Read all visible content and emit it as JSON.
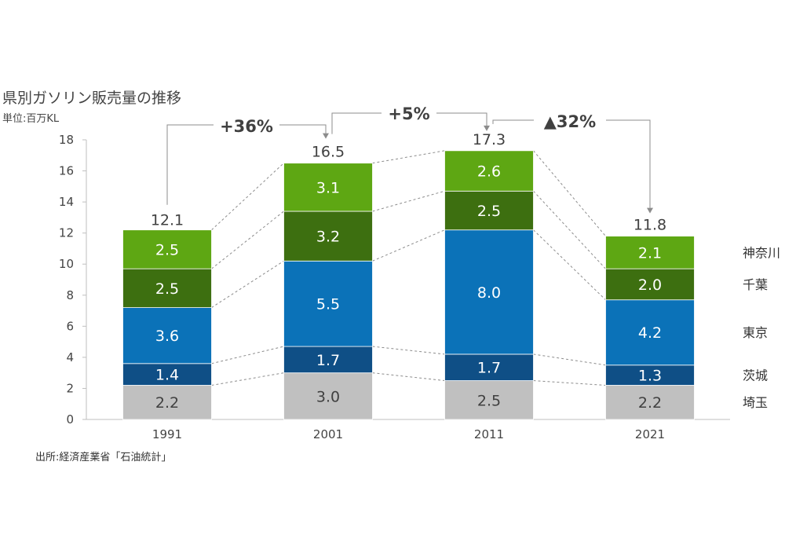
{
  "title": "県別ガソリン販売量の推移",
  "unit": "単位:百万KL",
  "source": "出所:経済産業省「石油統計」",
  "chart_data": {
    "type": "bar",
    "stacked": true,
    "title": "県別ガソリン販売量の推移",
    "xlabel": "",
    "ylabel": "",
    "ylim": [
      0,
      18
    ],
    "yticks": [
      0,
      2,
      4,
      6,
      8,
      10,
      12,
      14,
      16,
      18
    ],
    "categories": [
      "1991",
      "2001",
      "2011",
      "2021"
    ],
    "series": [
      {
        "name": "埼玉",
        "color": "#c0c0c0",
        "label_color": "#404040",
        "values": [
          2.2,
          3.0,
          2.5,
          2.2
        ],
        "labels": [
          "2.2",
          "3.0",
          "2.5",
          "2.2"
        ]
      },
      {
        "name": "茨城",
        "color": "#0f4f86",
        "label_color": "#ffffff",
        "values": [
          1.4,
          1.7,
          1.7,
          1.3
        ],
        "labels": [
          "1.4",
          "1.7",
          "1.7",
          "1.3"
        ]
      },
      {
        "name": "東京",
        "color": "#0b72b8",
        "label_color": "#ffffff",
        "values": [
          3.6,
          5.5,
          8.0,
          4.2
        ],
        "labels": [
          "3.6",
          "5.5",
          "8.0",
          "4.2"
        ]
      },
      {
        "name": "千葉",
        "color": "#3d6f10",
        "label_color": "#ffffff",
        "values": [
          2.5,
          3.2,
          2.5,
          2.0
        ],
        "labels": [
          "2.5",
          "3.2",
          "2.5",
          "2.0"
        ]
      },
      {
        "name": "神奈川",
        "color": "#5ea713",
        "label_color": "#ffffff",
        "values": [
          2.5,
          3.1,
          2.6,
          2.1
        ],
        "labels": [
          "2.5",
          "3.1",
          "2.6",
          "2.1"
        ]
      }
    ],
    "totals": [
      12.1,
      16.5,
      17.3,
      11.8
    ],
    "total_labels": [
      "12.1",
      "16.5",
      "17.3",
      "11.8"
    ],
    "changes": [
      {
        "from": "1991",
        "to": "2001",
        "label": "+36%"
      },
      {
        "from": "2001",
        "to": "2011",
        "label": "+5%"
      },
      {
        "from": "2011",
        "to": "2021",
        "label": "▲32%"
      }
    ],
    "legend_position": "right",
    "grid": false
  }
}
